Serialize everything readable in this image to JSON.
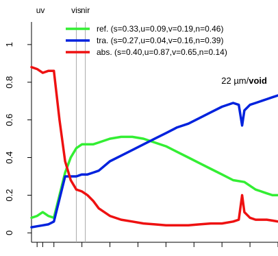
{
  "chart_data": {
    "type": "line",
    "annotation_prefix": "22 µm/",
    "annotation_bold": "void",
    "ylim": [
      -0.05,
      1.12
    ],
    "yticks": [
      0,
      0.2,
      0.4,
      0.6,
      0.8,
      1
    ],
    "ytick_labels": [
      "0",
      "0.2",
      "0.4",
      "0.6",
      "0.8",
      "1"
    ],
    "xlim": [
      0.3,
      2.5
    ],
    "region_markers": [
      {
        "label": "uv",
        "x": 0.38
      },
      {
        "label": "vis",
        "x": 0.7
      },
      {
        "label": "nir",
        "x": 0.78
      }
    ],
    "series": [
      {
        "name": "ref.",
        "stats": "(s=0.33,u=0.09,v=0.19,n=0.46)",
        "color": "#33ee33",
        "x": [
          0.3,
          0.35,
          0.4,
          0.45,
          0.5,
          0.55,
          0.6,
          0.65,
          0.7,
          0.75,
          0.8,
          0.85,
          0.9,
          1.0,
          1.1,
          1.2,
          1.3,
          1.4,
          1.5,
          1.6,
          1.7,
          1.8,
          1.9,
          2.0,
          2.1,
          2.2,
          2.3,
          2.35,
          2.4,
          2.45,
          2.5
        ],
        "y": [
          0.08,
          0.09,
          0.11,
          0.09,
          0.08,
          0.2,
          0.32,
          0.4,
          0.45,
          0.47,
          0.47,
          0.47,
          0.48,
          0.5,
          0.51,
          0.51,
          0.5,
          0.48,
          0.46,
          0.43,
          0.4,
          0.37,
          0.34,
          0.31,
          0.28,
          0.27,
          0.23,
          0.22,
          0.21,
          0.2,
          0.2
        ]
      },
      {
        "name": "tra.",
        "stats": "(s=0.27,u=0.04,v=0.16,n=0.39)",
        "color": "#0022dd",
        "x": [
          0.3,
          0.35,
          0.4,
          0.45,
          0.5,
          0.55,
          0.6,
          0.65,
          0.7,
          0.75,
          0.8,
          0.85,
          0.9,
          1.0,
          1.1,
          1.2,
          1.3,
          1.4,
          1.5,
          1.6,
          1.7,
          1.8,
          1.9,
          2.0,
          2.1,
          2.15,
          2.18,
          2.2,
          2.25,
          2.3,
          2.4,
          2.45,
          2.5
        ],
        "y": [
          0.03,
          0.035,
          0.04,
          0.045,
          0.06,
          0.18,
          0.3,
          0.3,
          0.3,
          0.31,
          0.31,
          0.32,
          0.33,
          0.38,
          0.41,
          0.44,
          0.47,
          0.5,
          0.53,
          0.56,
          0.58,
          0.61,
          0.64,
          0.67,
          0.69,
          0.68,
          0.57,
          0.65,
          0.68,
          0.69,
          0.71,
          0.72,
          0.73
        ]
      },
      {
        "name": "abs.",
        "stats": "(s=0.40,u=0.87,v=0.65,n=0.14)",
        "color": "#ee1111",
        "x": [
          0.3,
          0.35,
          0.4,
          0.45,
          0.5,
          0.55,
          0.6,
          0.65,
          0.7,
          0.75,
          0.8,
          0.85,
          0.9,
          1.0,
          1.1,
          1.2,
          1.3,
          1.4,
          1.5,
          1.6,
          1.7,
          1.8,
          1.9,
          2.0,
          2.1,
          2.15,
          2.18,
          2.2,
          2.25,
          2.3,
          2.4,
          2.45,
          2.5
        ],
        "y": [
          0.88,
          0.87,
          0.85,
          0.86,
          0.86,
          0.6,
          0.38,
          0.28,
          0.23,
          0.22,
          0.2,
          0.17,
          0.13,
          0.09,
          0.07,
          0.06,
          0.05,
          0.045,
          0.04,
          0.04,
          0.04,
          0.045,
          0.05,
          0.05,
          0.06,
          0.07,
          0.2,
          0.11,
          0.08,
          0.07,
          0.07,
          0.065,
          0.06
        ]
      }
    ]
  }
}
